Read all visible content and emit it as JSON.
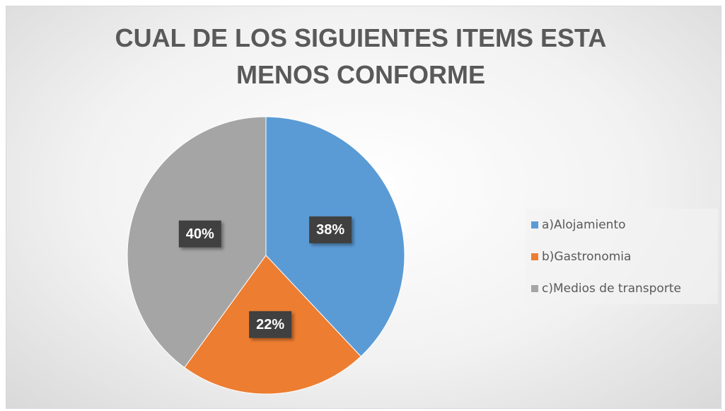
{
  "chart_data": {
    "type": "pie",
    "title": "CUAL DE LOS SIGUIENTES ITEMS ESTA MENOS CONFORME",
    "categories": [
      "a)Alojamiento",
      "b)Gastronomia",
      "c)Medios de transporte"
    ],
    "values": [
      38,
      22,
      40
    ],
    "value_labels": [
      "38%",
      "22%",
      "40%"
    ],
    "colors": [
      "#5b9bd5",
      "#ed7d31",
      "#a5a5a5"
    ],
    "legend": "right"
  }
}
